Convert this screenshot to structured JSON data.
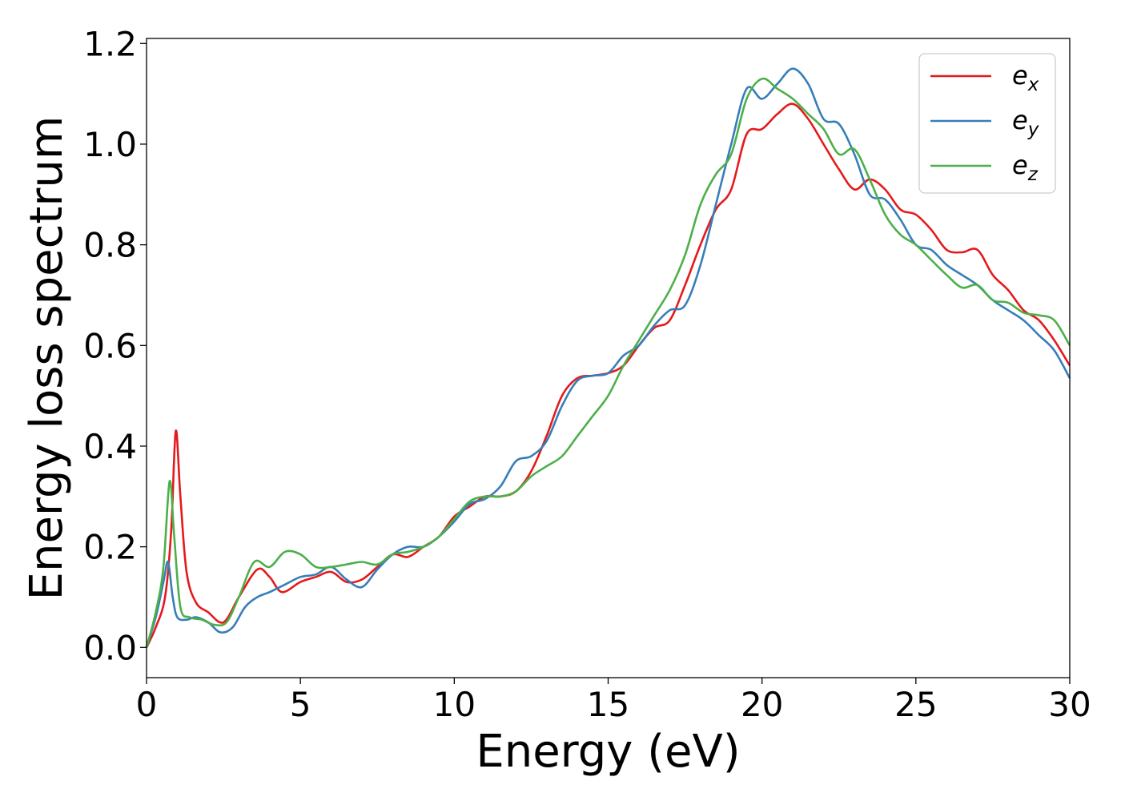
{
  "chart_data": {
    "type": "line",
    "title": "",
    "xlabel": "Energy (eV)",
    "ylabel": "Energy loss spectrum",
    "xlim": [
      0,
      30
    ],
    "ylim": [
      -0.06,
      1.21
    ],
    "xticks": [
      "0",
      "5",
      "10",
      "15",
      "20",
      "25",
      "30"
    ],
    "yticks": [
      "0.0",
      "0.2",
      "0.4",
      "0.6",
      "0.8",
      "1.0",
      "1.2"
    ],
    "grid": false,
    "legend_position": "top-right",
    "series": [
      {
        "name": "e_x",
        "label_base": "e",
        "label_sub": "x",
        "color": "#e41a1c",
        "x": [
          0,
          0.3,
          0.6,
          0.8,
          0.95,
          1.1,
          1.3,
          1.6,
          2.0,
          2.5,
          3.0,
          3.6,
          4.0,
          4.4,
          5.0,
          5.5,
          6.0,
          6.5,
          7.0,
          7.5,
          8.0,
          8.5,
          9.0,
          9.5,
          10.0,
          10.5,
          11.0,
          11.5,
          12.0,
          12.5,
          13.0,
          13.5,
          14.0,
          14.5,
          15.0,
          15.5,
          16.0,
          16.5,
          17.0,
          17.5,
          18.0,
          18.5,
          19.0,
          19.5,
          20.0,
          20.5,
          21.0,
          21.5,
          22.0,
          22.5,
          23.0,
          23.5,
          24.0,
          24.5,
          25.0,
          25.5,
          26.0,
          26.5,
          27.0,
          27.5,
          28.0,
          28.5,
          29.0,
          29.5,
          30.0
        ],
        "y": [
          0.0,
          0.04,
          0.1,
          0.23,
          0.43,
          0.3,
          0.15,
          0.09,
          0.07,
          0.05,
          0.1,
          0.155,
          0.14,
          0.11,
          0.13,
          0.14,
          0.15,
          0.13,
          0.135,
          0.16,
          0.185,
          0.18,
          0.2,
          0.22,
          0.26,
          0.28,
          0.3,
          0.3,
          0.31,
          0.35,
          0.42,
          0.5,
          0.535,
          0.54,
          0.545,
          0.56,
          0.6,
          0.635,
          0.65,
          0.72,
          0.8,
          0.87,
          0.91,
          1.02,
          1.03,
          1.06,
          1.08,
          1.05,
          1.0,
          0.95,
          0.91,
          0.93,
          0.91,
          0.87,
          0.86,
          0.83,
          0.79,
          0.785,
          0.79,
          0.74,
          0.71,
          0.67,
          0.65,
          0.61,
          0.56
        ]
      },
      {
        "name": "e_y",
        "label_base": "e",
        "label_sub": "y",
        "color": "#377eb8",
        "x": [
          0,
          0.3,
          0.55,
          0.7,
          0.85,
          1.0,
          1.3,
          1.6,
          2.0,
          2.4,
          2.8,
          3.2,
          3.6,
          4.0,
          4.5,
          5.0,
          5.5,
          6.0,
          6.5,
          7.0,
          7.5,
          8.0,
          8.5,
          9.0,
          9.5,
          10.0,
          10.5,
          11.0,
          11.5,
          12.0,
          12.5,
          13.0,
          13.5,
          14.0,
          14.5,
          15.0,
          15.5,
          16.0,
          16.5,
          17.0,
          17.5,
          18.0,
          18.5,
          19.0,
          19.5,
          20.0,
          20.5,
          21.0,
          21.5,
          22.0,
          22.5,
          23.0,
          23.5,
          24.0,
          24.5,
          25.0,
          25.5,
          26.0,
          26.5,
          27.0,
          27.5,
          28.0,
          28.5,
          29.0,
          29.5,
          30.0
        ],
        "y": [
          0.0,
          0.06,
          0.13,
          0.17,
          0.1,
          0.06,
          0.055,
          0.06,
          0.05,
          0.03,
          0.04,
          0.08,
          0.1,
          0.11,
          0.125,
          0.14,
          0.145,
          0.16,
          0.135,
          0.12,
          0.155,
          0.185,
          0.2,
          0.2,
          0.22,
          0.25,
          0.285,
          0.295,
          0.32,
          0.37,
          0.38,
          0.41,
          0.48,
          0.53,
          0.54,
          0.545,
          0.58,
          0.6,
          0.64,
          0.67,
          0.68,
          0.76,
          0.88,
          1.0,
          1.11,
          1.09,
          1.12,
          1.15,
          1.12,
          1.05,
          1.04,
          0.98,
          0.9,
          0.89,
          0.85,
          0.8,
          0.79,
          0.76,
          0.74,
          0.72,
          0.69,
          0.67,
          0.65,
          0.62,
          0.59,
          0.535
        ]
      },
      {
        "name": "e_z",
        "label_base": "e",
        "label_sub": "z",
        "color": "#4daf4a",
        "x": [
          0,
          0.3,
          0.55,
          0.75,
          0.9,
          1.1,
          1.4,
          1.8,
          2.2,
          2.6,
          3.0,
          3.5,
          4.0,
          4.5,
          5.0,
          5.5,
          6.0,
          6.5,
          7.0,
          7.5,
          8.0,
          8.5,
          9.0,
          9.5,
          10.0,
          10.5,
          11.0,
          11.5,
          12.0,
          12.5,
          13.0,
          13.5,
          14.0,
          14.5,
          15.0,
          15.5,
          16.0,
          16.5,
          17.0,
          17.5,
          18.0,
          18.5,
          19.0,
          19.5,
          20.0,
          20.5,
          21.0,
          21.5,
          22.0,
          22.5,
          23.0,
          23.5,
          24.0,
          24.5,
          25.0,
          25.5,
          26.0,
          26.5,
          27.0,
          27.5,
          28.0,
          28.5,
          29.0,
          29.5,
          30.0
        ],
        "y": [
          0.0,
          0.07,
          0.16,
          0.33,
          0.22,
          0.08,
          0.06,
          0.055,
          0.045,
          0.05,
          0.1,
          0.17,
          0.16,
          0.19,
          0.185,
          0.16,
          0.16,
          0.165,
          0.17,
          0.165,
          0.185,
          0.19,
          0.2,
          0.22,
          0.255,
          0.29,
          0.3,
          0.3,
          0.31,
          0.34,
          0.36,
          0.38,
          0.42,
          0.46,
          0.5,
          0.56,
          0.61,
          0.66,
          0.71,
          0.78,
          0.88,
          0.94,
          0.98,
          1.09,
          1.13,
          1.11,
          1.09,
          1.06,
          1.03,
          0.98,
          0.99,
          0.93,
          0.86,
          0.82,
          0.8,
          0.77,
          0.74,
          0.715,
          0.72,
          0.69,
          0.685,
          0.665,
          0.66,
          0.65,
          0.6
        ]
      }
    ]
  }
}
